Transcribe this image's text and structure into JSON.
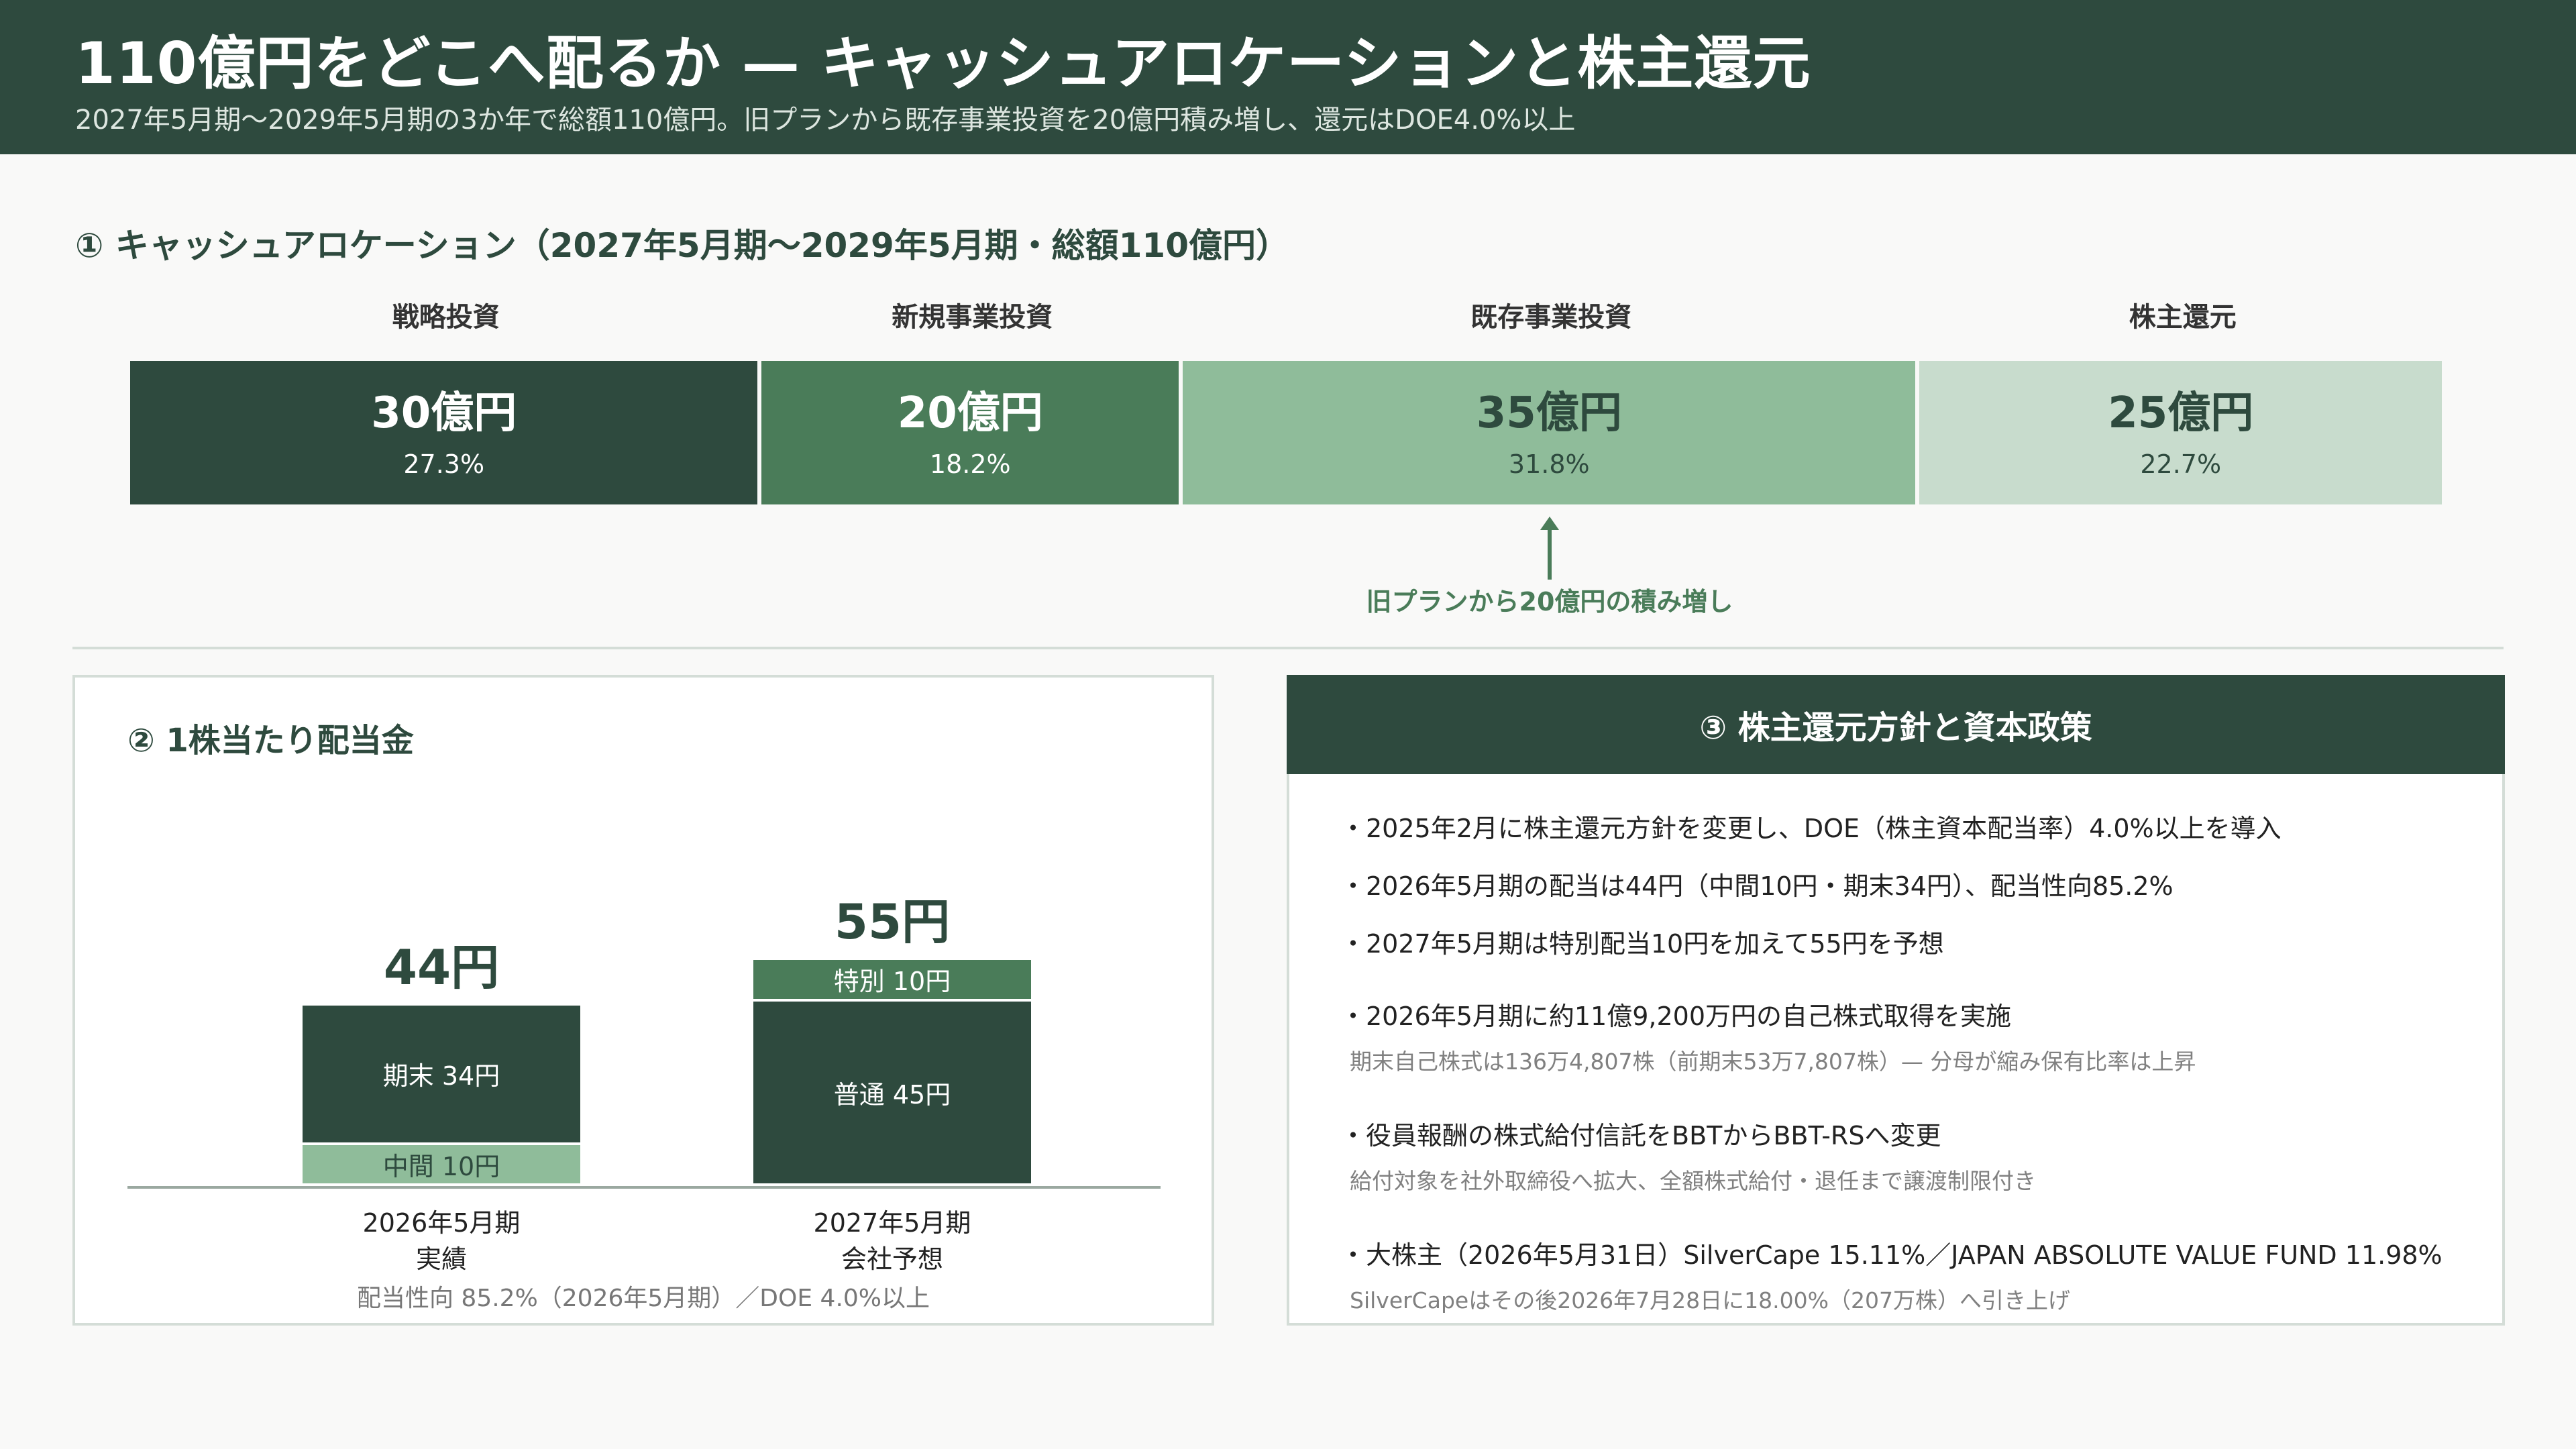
{
  "header": {
    "title": "110億円をどこへ配るか — キャッシュアロケーションと株主還元",
    "subtitle": "2027年5月期〜2029年5月期の3か年で総額110億円。旧プランから既存事業投資を20億円積み増し、還元はDOE4.0%以上"
  },
  "allocation": {
    "title": "① キャッシュアロケーション（2027年5月期〜2029年5月期・総額110億円）",
    "segments": [
      {
        "label": "戦略投資",
        "amount": "30億円",
        "value": 30,
        "pct": "27.3%",
        "color": "#2e4a3e",
        "text_color": "#ffffff"
      },
      {
        "label": "新規事業投資",
        "amount": "20億円",
        "value": 20,
        "pct": "18.2%",
        "color": "#4a7c59",
        "text_color": "#ffffff"
      },
      {
        "label": "既存事業投資",
        "amount": "35億円",
        "value": 35,
        "pct": "31.8%",
        "color": "#8fbc9a",
        "text_color": "#2e4a3e"
      },
      {
        "label": "株主還元",
        "amount": "25億円",
        "value": 25,
        "pct": "22.7%",
        "color": "#c8dccd",
        "text_color": "#2e4a3e"
      }
    ],
    "arrow_note": "旧プランから20億円の積み増し"
  },
  "dividend": {
    "title": "② 1株当たり配当金",
    "bars": [
      {
        "total": "44円",
        "total_value": 44,
        "period": "2026年5月期",
        "kind": "実績",
        "segments": [
          {
            "label": "中間 10円",
            "value": 10,
            "color": "#8fbc9a",
            "text_color": "#2e4a3e"
          },
          {
            "label": "期末 34円",
            "value": 34,
            "color": "#2e4a3e",
            "text_color": "#ffffff"
          }
        ]
      },
      {
        "total": "55円",
        "total_value": 55,
        "period": "2027年5月期",
        "kind": "会社予想",
        "segments": [
          {
            "label": "普通 45円",
            "value": 45,
            "color": "#2e4a3e",
            "text_color": "#ffffff"
          },
          {
            "label": "特別 10円",
            "value": 10,
            "color": "#4a7c59",
            "text_color": "#ffffff"
          }
        ]
      }
    ],
    "note": "配当性向 85.2%（2026年5月期）／DOE 4.0%以上"
  },
  "policy": {
    "title": "③ 株主還元方針と資本政策",
    "bullets": [
      {
        "text": "・2025年2月に株主還元方針を変更し、DOE（株主資本配当率）4.0%以上を導入",
        "sub": ""
      },
      {
        "text": "・2026年5月期の配当は44円（中間10円・期末34円）、配当性向85.2%",
        "sub": ""
      },
      {
        "text": "・2027年5月期は特別配当10円を加えて55円を予想",
        "sub": ""
      },
      {
        "text": "・2026年5月期に約11億9,200万円の自己株式取得を実施",
        "sub": "期末自己株式は136万4,807株（前期末53万7,807株）— 分母が縮み保有比率は上昇"
      },
      {
        "text": "・役員報酬の株式給付信託をBBTからBBT-RSへ変更",
        "sub": "給付対象を社外取締役へ拡大、全額株式給付・退任まで譲渡制限付き"
      },
      {
        "text": "・大株主（2026年5月31日）SilverCape 15.11%／JAPAN ABSOLUTE VALUE FUND 11.98%",
        "sub": "SilverCapeはその後2026年7月28日に18.00%（207万株）へ引き上げ"
      }
    ]
  }
}
